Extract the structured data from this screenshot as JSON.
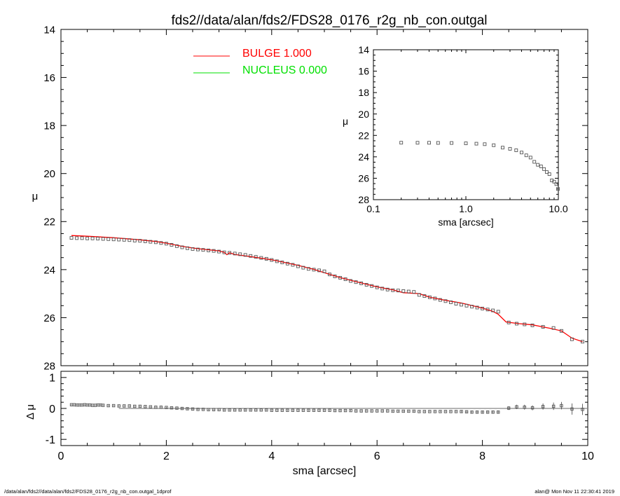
{
  "title": "fds2//data/alan/fds2/FDS28_0176_r2g_nb_con.outgal",
  "legend": [
    {
      "label": "BULGE  1.000",
      "color": "#ff0000"
    },
    {
      "label": "NUCLEUS  0.000",
      "color": "#00e000"
    }
  ],
  "footer_left": "/data/alan/fds2//data/alan/fds2/FDS28_0176_r2g_nb_con.outgal_1dprof",
  "footer_right": "alan@  Mon Nov 11 22:30:41 2019",
  "chart_data": [
    {
      "id": "main",
      "type": "scatter",
      "xlabel": "sma [arcsec]",
      "ylabel": "μ",
      "xlim": [
        0,
        10
      ],
      "ylim": [
        28,
        14
      ],
      "x_ticks": [
        0,
        2,
        4,
        6,
        8,
        10
      ],
      "y_ticks": [
        14,
        16,
        18,
        20,
        22,
        24,
        26,
        28
      ],
      "series": [
        {
          "name": "data",
          "role": "points",
          "color": "#555555",
          "x": [
            0.2,
            0.3,
            0.4,
            0.5,
            0.6,
            0.7,
            0.8,
            0.9,
            1.0,
            1.1,
            1.2,
            1.3,
            1.4,
            1.5,
            1.6,
            1.7,
            1.8,
            1.9,
            2.0,
            2.1,
            2.2,
            2.3,
            2.4,
            2.5,
            2.6,
            2.7,
            2.8,
            2.9,
            3.0,
            3.1,
            3.2,
            3.3,
            3.4,
            3.5,
            3.6,
            3.7,
            3.8,
            3.9,
            4.0,
            4.1,
            4.2,
            4.3,
            4.4,
            4.5,
            4.6,
            4.7,
            4.8,
            4.9,
            5.0,
            5.1,
            5.2,
            5.3,
            5.4,
            5.5,
            5.6,
            5.7,
            5.8,
            5.9,
            6.0,
            6.1,
            6.2,
            6.3,
            6.4,
            6.5,
            6.6,
            6.7,
            6.8,
            6.9,
            7.0,
            7.1,
            7.2,
            7.3,
            7.4,
            7.5,
            7.6,
            7.7,
            7.8,
            7.9,
            8.0,
            8.1,
            8.2,
            8.3,
            8.5,
            8.65,
            8.8,
            8.95,
            9.15,
            9.35,
            9.5,
            9.7,
            9.9
          ],
          "y": [
            22.68,
            22.69,
            22.69,
            22.7,
            22.7,
            22.71,
            22.72,
            22.73,
            22.74,
            22.75,
            22.76,
            22.77,
            22.79,
            22.8,
            22.82,
            22.84,
            22.86,
            22.89,
            22.92,
            22.97,
            23.02,
            23.07,
            23.11,
            23.14,
            23.16,
            23.18,
            23.2,
            23.22,
            23.25,
            23.28,
            23.3,
            23.33,
            23.36,
            23.39,
            23.43,
            23.47,
            23.51,
            23.55,
            23.6,
            23.65,
            23.7,
            23.75,
            23.8,
            23.86,
            23.92,
            23.97,
            24.0,
            24.03,
            24.07,
            24.2,
            24.28,
            24.34,
            24.4,
            24.47,
            24.52,
            24.57,
            24.63,
            24.68,
            24.74,
            24.79,
            24.83,
            24.86,
            24.87,
            24.89,
            24.91,
            24.93,
            25.05,
            25.1,
            25.15,
            25.2,
            25.26,
            25.31,
            25.36,
            25.42,
            25.46,
            25.5,
            25.54,
            25.58,
            25.62,
            25.66,
            25.7,
            25.75,
            26.2,
            26.25,
            26.28,
            26.32,
            26.38,
            26.43,
            26.55,
            26.9,
            27.0
          ]
        },
        {
          "name": "BULGE  1.000",
          "role": "line",
          "color": "#ff0000",
          "x": [
            0.2,
            0.5,
            1.0,
            1.5,
            1.8,
            2.0,
            2.3,
            2.6,
            3.0,
            3.1,
            3.15,
            3.2,
            3.3,
            3.6,
            4.0,
            4.5,
            4.8,
            5.0,
            5.3,
            5.6,
            6.0,
            6.3,
            6.5,
            6.8,
            7.0,
            7.3,
            7.6,
            8.0,
            8.2,
            8.3,
            8.45,
            8.7,
            8.95,
            9.3,
            9.5,
            9.7,
            9.9
          ],
          "y": [
            22.58,
            22.61,
            22.67,
            22.76,
            22.83,
            22.9,
            23.03,
            23.13,
            23.22,
            23.28,
            23.38,
            23.3,
            23.37,
            23.46,
            23.59,
            23.82,
            23.99,
            24.13,
            24.33,
            24.5,
            24.72,
            24.84,
            24.96,
            25.0,
            25.15,
            25.28,
            25.39,
            25.6,
            25.74,
            25.86,
            26.18,
            26.25,
            26.3,
            26.45,
            26.55,
            26.85,
            27.0
          ]
        }
      ]
    },
    {
      "id": "inset",
      "type": "scatter",
      "xlabel": "sma [arcsec]",
      "ylabel": "μ",
      "xscale": "log",
      "xlim": [
        0.1,
        10.0
      ],
      "ylim": [
        28,
        14
      ],
      "x_ticks": [
        0.1,
        1.0,
        10.0
      ],
      "x_tick_labels": [
        "0.1",
        "1.0",
        "10.0"
      ],
      "y_ticks": [
        14,
        16,
        18,
        20,
        22,
        24,
        26,
        28
      ],
      "series": [
        {
          "name": "data",
          "role": "points",
          "color": "#555555",
          "x": [
            0.2,
            0.3,
            0.4,
            0.5,
            0.7,
            1.0,
            1.3,
            1.6,
            2.0,
            2.5,
            3.0,
            3.5,
            4.0,
            4.5,
            5.0,
            5.5,
            6.0,
            6.5,
            7.0,
            7.5,
            8.0,
            8.5,
            9.0,
            9.5,
            9.9
          ],
          "y": [
            22.68,
            22.69,
            22.69,
            22.7,
            22.71,
            22.74,
            22.77,
            22.82,
            22.92,
            23.14,
            23.25,
            23.39,
            23.6,
            23.86,
            24.07,
            24.47,
            24.74,
            24.89,
            25.15,
            25.42,
            25.62,
            26.2,
            26.32,
            26.55,
            27.0
          ]
        }
      ]
    },
    {
      "id": "residual",
      "type": "scatter",
      "xlabel": "sma [arcsec]",
      "ylabel": "Δ μ",
      "xlim": [
        0,
        10
      ],
      "ylim": [
        -1.2,
        1.2
      ],
      "x_ticks": [
        0,
        2,
        4,
        6,
        8,
        10
      ],
      "y_ticks": [
        -1,
        0,
        1
      ],
      "x_tick_labels": [
        "0",
        "2",
        "4",
        "6",
        "8",
        "10"
      ],
      "series": [
        {
          "name": "residual",
          "role": "points",
          "color": "#555555",
          "x": [
            0.2,
            0.25,
            0.3,
            0.35,
            0.4,
            0.45,
            0.5,
            0.55,
            0.6,
            0.65,
            0.7,
            0.75,
            0.8,
            0.9,
            1.0,
            1.1,
            1.2,
            1.3,
            1.4,
            1.5,
            1.6,
            1.7,
            1.8,
            1.9,
            2.0,
            2.1,
            2.2,
            2.3,
            2.4,
            2.5,
            2.6,
            2.7,
            2.8,
            2.9,
            3.0,
            3.1,
            3.2,
            3.3,
            3.4,
            3.5,
            3.6,
            3.7,
            3.8,
            3.9,
            4.0,
            4.1,
            4.2,
            4.3,
            4.4,
            4.5,
            4.6,
            4.7,
            4.8,
            4.9,
            5.0,
            5.1,
            5.2,
            5.3,
            5.4,
            5.5,
            5.6,
            5.7,
            5.8,
            5.9,
            6.0,
            6.1,
            6.2,
            6.3,
            6.4,
            6.5,
            6.6,
            6.7,
            6.8,
            6.9,
            7.0,
            7.1,
            7.2,
            7.3,
            7.4,
            7.5,
            7.6,
            7.7,
            7.8,
            7.9,
            8.0,
            8.1,
            8.2,
            8.3,
            8.5,
            8.65,
            8.8,
            8.95,
            9.15,
            9.35,
            9.5,
            9.7,
            9.9
          ],
          "y": [
            0.12,
            0.12,
            0.11,
            0.11,
            0.11,
            0.12,
            0.11,
            0.11,
            0.1,
            0.1,
            0.11,
            0.11,
            0.1,
            0.09,
            0.09,
            0.08,
            0.08,
            0.08,
            0.07,
            0.07,
            0.06,
            0.05,
            0.04,
            0.04,
            0.03,
            0.02,
            0.01,
            0.0,
            -0.01,
            -0.02,
            -0.03,
            -0.03,
            -0.04,
            -0.04,
            -0.04,
            -0.05,
            -0.05,
            -0.05,
            -0.05,
            -0.05,
            -0.05,
            -0.05,
            -0.05,
            -0.05,
            -0.06,
            -0.06,
            -0.06,
            -0.06,
            -0.06,
            -0.06,
            -0.06,
            -0.06,
            -0.06,
            -0.06,
            -0.06,
            -0.06,
            -0.07,
            -0.07,
            -0.07,
            -0.07,
            -0.08,
            -0.08,
            -0.08,
            -0.08,
            -0.08,
            -0.08,
            -0.08,
            -0.09,
            -0.09,
            -0.09,
            -0.09,
            -0.09,
            -0.1,
            -0.1,
            -0.1,
            -0.1,
            -0.1,
            -0.1,
            -0.1,
            -0.1,
            -0.1,
            -0.11,
            -0.12,
            -0.12,
            -0.12,
            -0.12,
            -0.12,
            -0.12,
            0.01,
            0.05,
            0.04,
            0.02,
            0.06,
            0.07,
            0.09,
            -0.02,
            -0.03
          ],
          "err": [
            0.02,
            0.02,
            0.02,
            0.02,
            0.02,
            0.02,
            0.02,
            0.02,
            0.02,
            0.02,
            0.02,
            0.02,
            0.02,
            0.02,
            0.02,
            0.02,
            0.02,
            0.02,
            0.02,
            0.02,
            0.02,
            0.02,
            0.02,
            0.02,
            0.02,
            0.02,
            0.02,
            0.02,
            0.02,
            0.02,
            0.02,
            0.02,
            0.02,
            0.02,
            0.02,
            0.02,
            0.02,
            0.02,
            0.02,
            0.02,
            0.02,
            0.02,
            0.02,
            0.02,
            0.02,
            0.02,
            0.02,
            0.02,
            0.02,
            0.02,
            0.02,
            0.02,
            0.02,
            0.02,
            0.02,
            0.02,
            0.02,
            0.02,
            0.02,
            0.02,
            0.02,
            0.02,
            0.02,
            0.02,
            0.02,
            0.02,
            0.02,
            0.02,
            0.02,
            0.02,
            0.02,
            0.02,
            0.02,
            0.02,
            0.02,
            0.02,
            0.02,
            0.02,
            0.02,
            0.02,
            0.03,
            0.03,
            0.03,
            0.03,
            0.03,
            0.04,
            0.04,
            0.04,
            0.06,
            0.07,
            0.08,
            0.08,
            0.1,
            0.12,
            0.12,
            0.18,
            0.18
          ]
        },
        {
          "name": "zero",
          "role": "line",
          "color": "#888888",
          "x": [
            1.1,
            10.0
          ],
          "y": [
            0.0,
            0.0
          ]
        }
      ]
    }
  ]
}
